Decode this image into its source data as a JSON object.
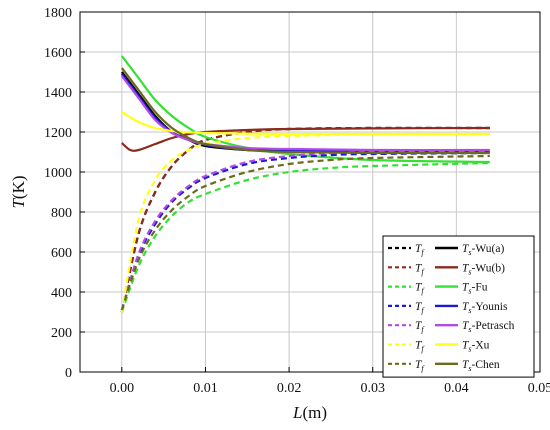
{
  "chart_data": {
    "type": "line",
    "xlabel_var": "L",
    "xlabel_unit": "(m)",
    "ylabel_var": "T",
    "ylabel_unit": "(K)",
    "xlim": [
      -0.005,
      0.05
    ],
    "ylim": [
      0,
      1800
    ],
    "xticks": [
      0.0,
      0.01,
      0.02,
      0.03,
      0.04,
      0.05
    ],
    "xtick_labels": [
      "0.00",
      "0.01",
      "0.02",
      "0.03",
      "0.04",
      "0.05"
    ],
    "yticks": [
      0,
      200,
      400,
      600,
      800,
      1000,
      1200,
      1400,
      1600,
      1800
    ],
    "ytick_labels": [
      "0",
      "200",
      "400",
      "600",
      "800",
      "1000",
      "1200",
      "1400",
      "1600",
      "1800"
    ],
    "grid": true,
    "legend_position": "bottom-right",
    "series": [
      {
        "name": "Wu(a)",
        "color": "#000000",
        "Tf": {
          "x": [
            0,
            0.002,
            0.004,
            0.006,
            0.008,
            0.01,
            0.015,
            0.02,
            0.03,
            0.044
          ],
          "y": [
            300,
            690,
            900,
            1030,
            1110,
            1160,
            1200,
            1215,
            1220,
            1220
          ]
        },
        "Ts": {
          "x": [
            0,
            0.002,
            0.004,
            0.006,
            0.008,
            0.01,
            0.015,
            0.02,
            0.03,
            0.044
          ],
          "y": [
            1500,
            1390,
            1280,
            1200,
            1160,
            1130,
            1110,
            1105,
            1100,
            1100
          ]
        }
      },
      {
        "name": "Wu(b)",
        "color": "#8b2a1e",
        "Tf": {
          "x": [
            0,
            0.002,
            0.004,
            0.006,
            0.008,
            0.01,
            0.015,
            0.02,
            0.03,
            0.044
          ],
          "y": [
            300,
            690,
            900,
            1030,
            1110,
            1160,
            1200,
            1215,
            1220,
            1220
          ]
        },
        "Ts": {
          "x": [
            0,
            0.001,
            0.002,
            0.004,
            0.006,
            0.008,
            0.01,
            0.015,
            0.02,
            0.03,
            0.044
          ],
          "y": [
            1145,
            1110,
            1110,
            1140,
            1170,
            1190,
            1200,
            1210,
            1215,
            1218,
            1220
          ]
        }
      },
      {
        "name": "Fu",
        "color": "#33e133",
        "Tf": {
          "x": [
            0,
            0.002,
            0.004,
            0.006,
            0.008,
            0.01,
            0.015,
            0.02,
            0.025,
            0.03,
            0.044
          ],
          "y": [
            300,
            530,
            680,
            780,
            850,
            890,
            960,
            1000,
            1020,
            1030,
            1045
          ]
        },
        "Ts": {
          "x": [
            0,
            0.002,
            0.004,
            0.006,
            0.008,
            0.01,
            0.015,
            0.02,
            0.03,
            0.044
          ],
          "y": [
            1580,
            1470,
            1360,
            1280,
            1220,
            1175,
            1120,
            1090,
            1060,
            1050
          ]
        }
      },
      {
        "name": "Younis",
        "color": "#1a1ad6",
        "Tf": {
          "x": [
            0,
            0.002,
            0.004,
            0.006,
            0.008,
            0.01,
            0.015,
            0.02,
            0.025,
            0.03,
            0.044
          ],
          "y": [
            310,
            580,
            740,
            850,
            920,
            970,
            1040,
            1070,
            1085,
            1090,
            1095
          ]
        },
        "Ts": {
          "x": [
            0,
            0.002,
            0.004,
            0.006,
            0.008,
            0.01,
            0.015,
            0.02,
            0.03,
            0.044
          ],
          "y": [
            1490,
            1380,
            1270,
            1200,
            1160,
            1135,
            1110,
            1105,
            1100,
            1100
          ]
        }
      },
      {
        "name": "Petrasch",
        "color": "#b44ae6",
        "Tf": {
          "x": [
            0,
            0.002,
            0.004,
            0.006,
            0.008,
            0.01,
            0.015,
            0.02,
            0.025,
            0.03,
            0.044
          ],
          "y": [
            310,
            590,
            755,
            860,
            930,
            980,
            1050,
            1080,
            1095,
            1100,
            1105
          ]
        },
        "Ts": {
          "x": [
            0,
            0.002,
            0.004,
            0.006,
            0.008,
            0.01,
            0.015,
            0.02,
            0.03,
            0.044
          ],
          "y": [
            1480,
            1370,
            1260,
            1195,
            1160,
            1140,
            1120,
            1115,
            1110,
            1110
          ]
        }
      },
      {
        "name": "Xu",
        "color": "#ffff1a",
        "Tf": {
          "x": [
            0,
            0.002,
            0.004,
            0.006,
            0.008,
            0.01,
            0.015,
            0.02,
            0.025,
            0.03,
            0.044
          ],
          "y": [
            300,
            760,
            960,
            1060,
            1110,
            1140,
            1170,
            1180,
            1185,
            1190,
            1190
          ]
        },
        "Ts": {
          "x": [
            0,
            0.002,
            0.004,
            0.006,
            0.008,
            0.01,
            0.015,
            0.02,
            0.03,
            0.044
          ],
          "y": [
            1300,
            1250,
            1220,
            1205,
            1198,
            1195,
            1192,
            1190,
            1190,
            1190
          ]
        }
      },
      {
        "name": "Chen",
        "color": "#6b6b1e",
        "Tf": {
          "x": [
            0,
            0.002,
            0.004,
            0.006,
            0.008,
            0.01,
            0.015,
            0.02,
            0.025,
            0.03,
            0.044
          ],
          "y": [
            310,
            560,
            710,
            810,
            880,
            930,
            1000,
            1040,
            1060,
            1070,
            1080
          ]
        },
        "Ts": {
          "x": [
            0,
            0.002,
            0.004,
            0.006,
            0.008,
            0.01,
            0.015,
            0.02,
            0.03,
            0.044
          ],
          "y": [
            1520,
            1410,
            1300,
            1220,
            1170,
            1140,
            1110,
            1100,
            1095,
            1095
          ]
        }
      }
    ],
    "legend_tf_symbol": "T",
    "legend_tf_sub": "f",
    "legend_ts_symbol": "T",
    "legend_ts_sub": "s",
    "legend_sep": "-"
  }
}
